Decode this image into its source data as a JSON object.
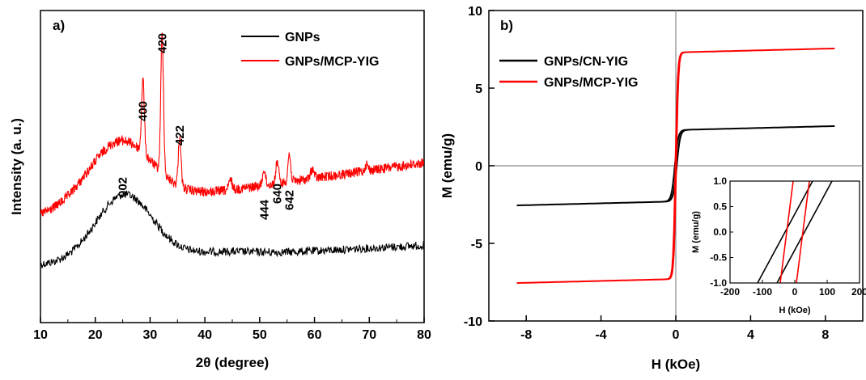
{
  "chart_data": [
    {
      "panel": "a)",
      "type": "line",
      "xlabel": "2θ (degree)",
      "ylabel": "Intensity (a. u.)",
      "xlim": [
        10,
        80
      ],
      "xticks": [
        "10",
        "20",
        "30",
        "40",
        "50",
        "60",
        "70",
        "80"
      ],
      "yticks_shown": false,
      "legend_position": "top-right",
      "series": [
        {
          "name": "GNPs",
          "color": "#000000",
          "peaks": [
            {
              "x": 25.0,
              "label": "002"
            }
          ]
        },
        {
          "name": "GNPs/MCP-YIG",
          "color": "#ff0000",
          "peaks": [
            {
              "x": 28.7,
              "label": "400"
            },
            {
              "x": 32.2,
              "label": "420"
            },
            {
              "x": 35.4,
              "label": "422"
            },
            {
              "x": 50.8,
              "label": "444"
            },
            {
              "x": 53.2,
              "label": "640"
            },
            {
              "x": 55.4,
              "label": "642"
            }
          ]
        }
      ]
    },
    {
      "panel": "b)",
      "type": "line",
      "xlabel": "H (kOe)",
      "ylabel": "M (emu/g)",
      "xlim": [
        -10,
        10
      ],
      "ylim": [
        -10,
        10
      ],
      "xticks": [
        "-8",
        "-4",
        "0",
        "4",
        "8"
      ],
      "yticks": [
        "-10",
        "-5",
        "0",
        "5",
        "10"
      ],
      "legend_position": "top-left",
      "series": [
        {
          "name": "GNPs/CN-YIG",
          "color": "#000000",
          "Ms": 2.3,
          "Hc_kOe": 0.05,
          "Hmax_kOe": 8.5
        },
        {
          "name": "GNPs/MCP-YIG",
          "color": "#ff0000",
          "Ms": 7.3,
          "Hc_kOe": 0.02,
          "Hmax_kOe": 8.5
        }
      ],
      "inset": {
        "xlabel": "H (kOe)",
        "ylabel": "M (emu/g)",
        "xlim": [
          -200,
          200
        ],
        "ylim": [
          -1.0,
          1.0
        ],
        "xticks": [
          "-200",
          "-100",
          "0",
          "100",
          "200"
        ],
        "yticks": [
          "-1.0",
          "-0.5",
          "0.0",
          "0.5",
          "1.0"
        ]
      }
    }
  ]
}
